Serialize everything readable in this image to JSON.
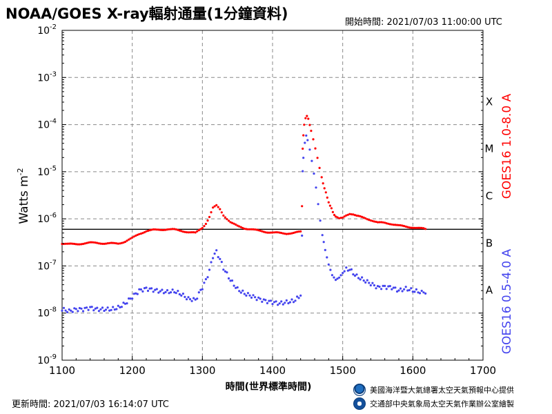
{
  "header": {
    "title": "NOAA/GOES X-ray輻射通量(1分鐘資料)",
    "start_time": "開始時間: 2021/07/03 11:00:00 UTC"
  },
  "footer": {
    "updated": "更新時間: 2021/07/03 16:14:07 UTC",
    "credit_noaa": "美國海洋暨大氣總署太空天氣預報中心提供",
    "credit_cwb": "交通部中央氣象局太空天氣作業辦公室繪製"
  },
  "chart_data": {
    "type": "scatter",
    "title": "NOAA/GOES X-ray輻射通量(1分鐘資料)",
    "xlabel": "時間(世界標準時間)",
    "ylabel": "Watts m",
    "ylabel_superscript": "-2",
    "xlim": [
      1100,
      1700
    ],
    "ylim_exponent": [
      -9,
      -2
    ],
    "y_scale": "log",
    "x_ticks": [
      "1100",
      "1200",
      "1300",
      "1400",
      "1500",
      "1600",
      "1700"
    ],
    "y_ticks": [
      {
        "base": "10",
        "exp": "-9"
      },
      {
        "base": "10",
        "exp": "-8"
      },
      {
        "base": "10",
        "exp": "-7"
      },
      {
        "base": "10",
        "exp": "-6"
      },
      {
        "base": "10",
        "exp": "-5"
      },
      {
        "base": "10",
        "exp": "-4"
      },
      {
        "base": "10",
        "exp": "-3"
      },
      {
        "base": "10",
        "exp": "-2"
      }
    ],
    "grid": true,
    "threshold_line": 6e-07,
    "flare_classes": [
      {
        "label": "A",
        "exponent": -7.5
      },
      {
        "label": "B",
        "exponent": -6.5
      },
      {
        "label": "C",
        "exponent": -5.5
      },
      {
        "label": "M",
        "exponent": -4.5
      },
      {
        "label": "X",
        "exponent": -3.5
      }
    ],
    "series": [
      {
        "name": "GOES16 1.0-8.0 A",
        "color": "#ff0000",
        "points": [
          [
            1100,
            3e-07
          ],
          [
            1110,
            2.9e-07
          ],
          [
            1120,
            2.9e-07
          ],
          [
            1130,
            3e-07
          ],
          [
            1140,
            3.1e-07
          ],
          [
            1150,
            3.1e-07
          ],
          [
            1160,
            3e-07
          ],
          [
            1170,
            3e-07
          ],
          [
            1180,
            3e-07
          ],
          [
            1190,
            3.3e-07
          ],
          [
            1200,
            3.9e-07
          ],
          [
            1210,
            4.8e-07
          ],
          [
            1220,
            5.5e-07
          ],
          [
            1230,
            5.8e-07
          ],
          [
            1240,
            5.9e-07
          ],
          [
            1250,
            6e-07
          ],
          [
            1260,
            5.9e-07
          ],
          [
            1270,
            5.6e-07
          ],
          [
            1280,
            5.2e-07
          ],
          [
            1290,
            5e-07
          ],
          [
            1300,
            6.5e-07
          ],
          [
            1305,
            8e-07
          ],
          [
            1310,
            1.1e-06
          ],
          [
            1315,
            1.7e-06
          ],
          [
            1320,
            1.9e-06
          ],
          [
            1325,
            1.6e-06
          ],
          [
            1330,
            1.2e-06
          ],
          [
            1340,
            8.5e-07
          ],
          [
            1350,
            7e-07
          ],
          [
            1360,
            6.3e-07
          ],
          [
            1370,
            6e-07
          ],
          [
            1380,
            5.6e-07
          ],
          [
            1390,
            5.3e-07
          ],
          [
            1400,
            5.1e-07
          ],
          [
            1410,
            5e-07
          ],
          [
            1420,
            4.9e-07
          ],
          [
            1430,
            5e-07
          ],
          [
            1440,
            5.3e-07
          ],
          [
            1442,
            1.9e-06
          ],
          [
            1443,
            3e-05
          ],
          [
            1444,
            6e-05
          ],
          [
            1445,
            0.0001
          ],
          [
            1447,
            0.00014
          ],
          [
            1449,
            0.00015
          ],
          [
            1451,
            0.00013
          ],
          [
            1453,
            0.0001
          ],
          [
            1455,
            7.5e-05
          ],
          [
            1458,
            5e-05
          ],
          [
            1461,
            3.2e-05
          ],
          [
            1464,
            2e-05
          ],
          [
            1467,
            1.2e-05
          ],
          [
            1470,
            7.5e-06
          ],
          [
            1474,
            4.5e-06
          ],
          [
            1478,
            2.8e-06
          ],
          [
            1482,
            1.9e-06
          ],
          [
            1486,
            1.4e-06
          ],
          [
            1490,
            1.1e-06
          ],
          [
            1495,
            1e-06
          ],
          [
            1500,
            1.05e-06
          ],
          [
            1505,
            1.2e-06
          ],
          [
            1510,
            1.3e-06
          ],
          [
            1515,
            1.25e-06
          ],
          [
            1520,
            1.15e-06
          ],
          [
            1530,
            1.05e-06
          ],
          [
            1540,
            9.5e-07
          ],
          [
            1550,
            8.3e-07
          ],
          [
            1560,
            8.2e-07
          ],
          [
            1570,
            7.8e-07
          ],
          [
            1580,
            7.2e-07
          ],
          [
            1590,
            6.8e-07
          ],
          [
            1600,
            6.6e-07
          ],
          [
            1610,
            6.3e-07
          ],
          [
            1618,
            6.1e-07
          ]
        ]
      },
      {
        "name": "GOES16 0.5-4.0 A",
        "color": "#4444ee",
        "points": [
          [
            1100,
            1.2e-08
          ],
          [
            1110,
            1.1e-08
          ],
          [
            1120,
            1.2e-08
          ],
          [
            1130,
            1.2e-08
          ],
          [
            1140,
            1.3e-08
          ],
          [
            1150,
            1.2e-08
          ],
          [
            1160,
            1.2e-08
          ],
          [
            1170,
            1.2e-08
          ],
          [
            1180,
            1.3e-08
          ],
          [
            1190,
            1.6e-08
          ],
          [
            1200,
            2.2e-08
          ],
          [
            1210,
            3e-08
          ],
          [
            1220,
            3.3e-08
          ],
          [
            1230,
            3.1e-08
          ],
          [
            1240,
            2.9e-08
          ],
          [
            1250,
            2.8e-08
          ],
          [
            1260,
            2.9e-08
          ],
          [
            1270,
            2.5e-08
          ],
          [
            1280,
            2e-08
          ],
          [
            1290,
            1.9e-08
          ],
          [
            1300,
            3.5e-08
          ],
          [
            1305,
            5e-08
          ],
          [
            1310,
            8e-08
          ],
          [
            1315,
            1.6e-07
          ],
          [
            1320,
            2e-07
          ],
          [
            1325,
            1.4e-07
          ],
          [
            1330,
            9e-08
          ],
          [
            1340,
            5e-08
          ],
          [
            1350,
            3.2e-08
          ],
          [
            1360,
            2.6e-08
          ],
          [
            1370,
            2.3e-08
          ],
          [
            1380,
            2e-08
          ],
          [
            1390,
            1.8e-08
          ],
          [
            1400,
            1.7e-08
          ],
          [
            1410,
            1.6e-08
          ],
          [
            1420,
            1.7e-08
          ],
          [
            1430,
            1.8e-08
          ],
          [
            1440,
            2.3e-08
          ],
          [
            1442,
            4.5e-07
          ],
          [
            1443,
            1e-05
          ],
          [
            1444,
            2e-05
          ],
          [
            1446,
            4e-05
          ],
          [
            1448,
            5.8e-05
          ],
          [
            1450,
            4.8e-05
          ],
          [
            1453,
            3e-05
          ],
          [
            1456,
            1.7e-05
          ],
          [
            1459,
            9e-06
          ],
          [
            1462,
            4.5e-06
          ],
          [
            1465,
            2e-06
          ],
          [
            1468,
            9e-07
          ],
          [
            1471,
            4.5e-07
          ],
          [
            1475,
            2.2e-07
          ],
          [
            1480,
            1.1e-07
          ],
          [
            1485,
            6.5e-08
          ],
          [
            1490,
            5e-08
          ],
          [
            1495,
            5.5e-08
          ],
          [
            1500,
            7e-08
          ],
          [
            1505,
            8.5e-08
          ],
          [
            1510,
            8.5e-08
          ],
          [
            1515,
            7e-08
          ],
          [
            1520,
            6e-08
          ],
          [
            1530,
            5e-08
          ],
          [
            1540,
            4.2e-08
          ],
          [
            1550,
            3.5e-08
          ],
          [
            1560,
            3.6e-08
          ],
          [
            1570,
            3.5e-08
          ],
          [
            1580,
            3e-08
          ],
          [
            1590,
            3.3e-08
          ],
          [
            1600,
            3e-08
          ],
          [
            1610,
            2.8e-08
          ],
          [
            1618,
            2.6e-08
          ]
        ]
      }
    ]
  }
}
